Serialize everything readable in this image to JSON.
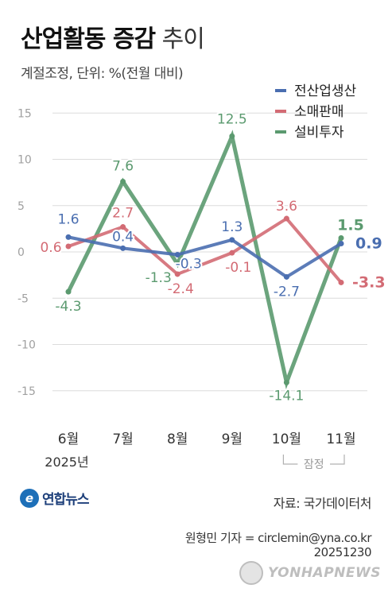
{
  "title_bold": "산업활동 증감",
  "title_light": "추이",
  "subtitle": "계절조정, 단위: %(전월 대비)",
  "colors": {
    "전산업생산": "#4a6eb0",
    "소매판매": "#d36b74",
    "설비투자": "#5b9a6f",
    "grid": "#dcdcdc",
    "axis_text": "#a0a0a0"
  },
  "chart_data": {
    "type": "line",
    "categories": [
      "6월",
      "7월",
      "8월",
      "9월",
      "10월",
      "11월"
    ],
    "category_sublabels": [
      "2025년",
      "",
      "",
      "",
      "",
      ""
    ],
    "bracket_label": "잠정",
    "ylim": [
      -17,
      16
    ],
    "yticks": [
      {
        "value": 15,
        "label": "15"
      },
      {
        "value": 10,
        "label": "10"
      },
      {
        "value": 5,
        "label": "5"
      },
      {
        "value": 0,
        "label": "0"
      },
      {
        "value": -5,
        "label": "-5"
      },
      {
        "value": -10,
        "label": "-10"
      },
      {
        "value": -15,
        "label": "-15"
      }
    ],
    "legend_position": "top-right",
    "series": [
      {
        "name": "전산업생산",
        "values": [
          1.6,
          0.4,
          -0.3,
          1.3,
          -2.7,
          0.9
        ],
        "labels": [
          "1.6",
          "0.4",
          "-0.3",
          "1.3",
          "-2.7",
          "0.9"
        ]
      },
      {
        "name": "소매판매",
        "values": [
          0.6,
          2.7,
          -2.4,
          -0.1,
          3.6,
          -3.3
        ],
        "labels": [
          "0.6",
          "2.7",
          "-2.4",
          "-0.1",
          "3.6",
          "-3.3"
        ]
      },
      {
        "name": "설비투자",
        "values": [
          -4.3,
          7.6,
          -1.3,
          12.5,
          -14.1,
          1.5
        ],
        "labels": [
          "-4.3",
          "7.6",
          "-1.3",
          "12.5",
          "-14.1",
          "1.5"
        ]
      }
    ]
  },
  "footer": {
    "logo_text": "연합뉴스",
    "source": "자료: 국가데이터처",
    "reporter": "원형민 기자 = circlemin@yna.co.kr",
    "date": "20251230",
    "watermark": "YONHAPNEWS"
  }
}
